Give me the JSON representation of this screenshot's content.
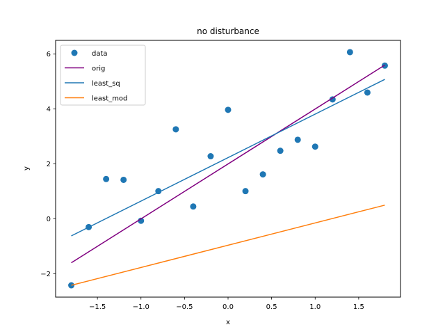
{
  "chart_data": {
    "type": "scatter",
    "title": "no disturbance",
    "xlabel": "x",
    "ylabel": "y",
    "xlim": [
      -1.98,
      1.98
    ],
    "ylim": [
      -2.85,
      6.5
    ],
    "grid": false,
    "legend_position": "top-left",
    "x_ticks": [
      {
        "value": -1.5,
        "label": "−1.5"
      },
      {
        "value": -1.0,
        "label": "−1.0"
      },
      {
        "value": -0.5,
        "label": "−0.5"
      },
      {
        "value": 0.0,
        "label": "0.0"
      },
      {
        "value": 0.5,
        "label": "0.5"
      },
      {
        "value": 1.0,
        "label": "1.0"
      },
      {
        "value": 1.5,
        "label": "1.5"
      }
    ],
    "y_ticks": [
      {
        "value": -2,
        "label": "−2"
      },
      {
        "value": 0,
        "label": "0"
      },
      {
        "value": 2,
        "label": "2"
      },
      {
        "value": 4,
        "label": "4"
      },
      {
        "value": 6,
        "label": "6"
      }
    ],
    "series": [
      {
        "name": "data",
        "kind": "scatter",
        "color": "#1f77b4",
        "x": [
          -1.8,
          -1.6,
          -1.4,
          -1.2,
          -1.0,
          -0.8,
          -0.6,
          -0.4,
          -0.2,
          0.0,
          0.2,
          0.4,
          0.6,
          0.8,
          1.0,
          1.2,
          1.4,
          1.6,
          1.8
        ],
        "y": [
          -2.42,
          -0.3,
          1.45,
          1.42,
          -0.07,
          1.01,
          3.26,
          0.45,
          2.28,
          3.97,
          1.01,
          1.62,
          2.48,
          2.88,
          2.63,
          4.35,
          6.07,
          4.6,
          5.58
        ]
      },
      {
        "name": "orig",
        "kind": "line",
        "color": "#800080",
        "x": [
          -1.8,
          1.8
        ],
        "y": [
          -1.6,
          5.6
        ]
      },
      {
        "name": "least_sq",
        "kind": "line",
        "color": "#1f77b4",
        "x": [
          -1.8,
          1.8
        ],
        "y": [
          -0.62,
          5.08
        ]
      },
      {
        "name": "least_mod",
        "kind": "line",
        "color": "#ff7f0e",
        "x": [
          -1.8,
          1.8
        ],
        "y": [
          -2.42,
          0.5
        ]
      }
    ]
  }
}
